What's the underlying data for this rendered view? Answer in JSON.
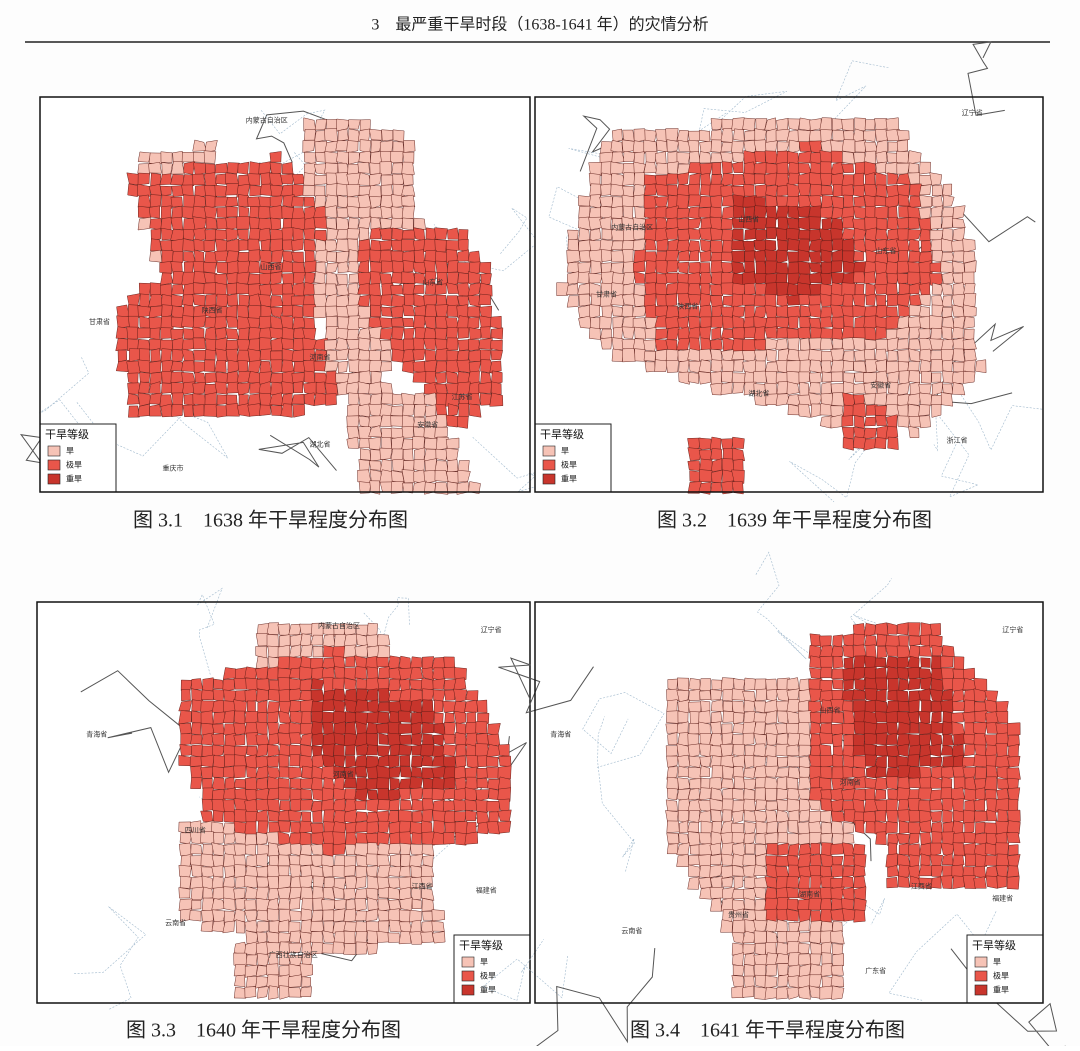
{
  "header": {
    "title": "3　最严重干旱时段（1638-1641 年）的灾情分析"
  },
  "figures": [
    {
      "caption": "图 3.1　1638 年干旱程度分布图",
      "legend": {
        "title": "干旱等级",
        "items": [
          "旱",
          "极旱",
          "重旱"
        ]
      },
      "labels": [
        "内蒙古自治区",
        "山西省",
        "陕西省",
        "河南省",
        "山东省",
        "甘肃省",
        "湖北省",
        "江苏省",
        "安徽省",
        "重庆市"
      ]
    },
    {
      "caption": "图 3.2　1639 年干旱程度分布图",
      "legend": {
        "title": "干旱等级",
        "items": [
          "旱",
          "极旱",
          "重旱"
        ]
      },
      "labels": [
        "辽宁省",
        "内蒙古自治区",
        "甘肃省",
        "陕西省",
        "山西省",
        "山东省",
        "湖北省",
        "安徽省",
        "浙江省"
      ]
    },
    {
      "caption": "图 3.3　1640 年干旱程度分布图",
      "legend": {
        "title": "干旱等级",
        "items": [
          "旱",
          "极旱",
          "重旱"
        ]
      },
      "labels": [
        "内蒙古自治区",
        "辽宁省",
        "青海省",
        "四川省",
        "云南省",
        "江西省",
        "福建省",
        "广西壮族自治区",
        "河南省"
      ]
    },
    {
      "caption": "图 3.4　1641 年干旱程度分布图",
      "legend": {
        "title": "干旱等级",
        "items": [
          "旱",
          "极旱",
          "重旱"
        ]
      },
      "labels": [
        "辽宁省",
        "青海省",
        "山西省",
        "河南省",
        "湖南省",
        "江西省",
        "福建省",
        "贵州省",
        "云南省",
        "广东省"
      ]
    }
  ]
}
